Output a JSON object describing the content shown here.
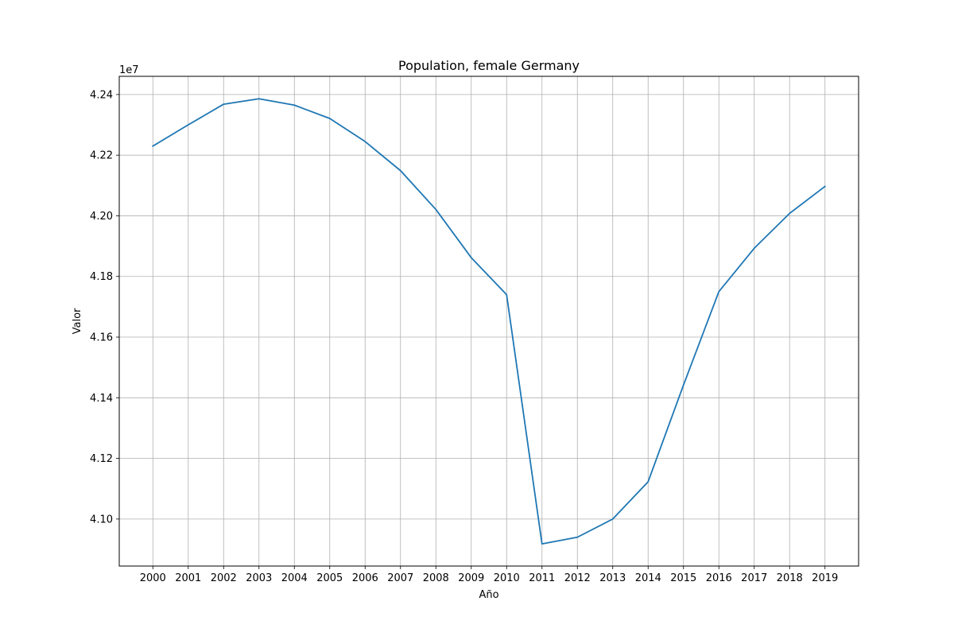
{
  "chart_data": {
    "type": "line",
    "title": "Population, female Germany",
    "xlabel": "Año",
    "ylabel": "Valor",
    "y_offset_label": "1e7",
    "y_scale_factor": 10000000,
    "x": [
      2000,
      2001,
      2002,
      2003,
      2004,
      2005,
      2006,
      2007,
      2008,
      2009,
      2010,
      2011,
      2012,
      2013,
      2014,
      2015,
      2016,
      2017,
      2018,
      2019
    ],
    "series": [
      {
        "values": [
          42230000,
          42300000,
          42368000,
          42386000,
          42365000,
          42321000,
          42245000,
          42149000,
          42021000,
          41862000,
          41740000,
          40918000,
          40940000,
          41000000,
          41123000,
          41442000,
          41750000,
          41893000,
          42008000,
          42097000
        ],
        "color": "#1f77b4"
      }
    ],
    "xticks": [
      "2000",
      "2001",
      "2002",
      "2003",
      "2004",
      "2005",
      "2006",
      "2007",
      "2008",
      "2009",
      "2010",
      "2011",
      "2012",
      "2013",
      "2014",
      "2015",
      "2016",
      "2017",
      "2018",
      "2019"
    ],
    "yticks": [
      41000000,
      41200000,
      41400000,
      41600000,
      41800000,
      42000000,
      42200000,
      42400000
    ],
    "ytick_labels": [
      "4.10",
      "4.12",
      "4.14",
      "4.16",
      "4.18",
      "4.20",
      "4.22",
      "4.24"
    ],
    "ylim": [
      40845000,
      42460000
    ],
    "xlim": [
      1999.05,
      2019.95
    ],
    "grid": true,
    "legend": "none"
  }
}
